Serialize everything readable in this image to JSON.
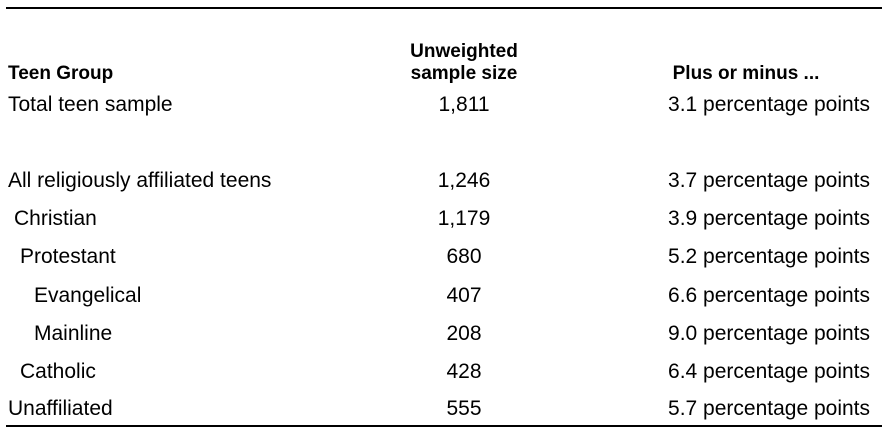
{
  "table": {
    "headers": {
      "group": "Teen Group",
      "sample_line1": "Unweighted",
      "sample_line2": "sample size",
      "moe": "Plus or minus ..."
    },
    "rows": [
      {
        "group": "Total teen sample",
        "sample": "1,811",
        "moe": "3.1 percentage points",
        "indent": 0
      },
      {
        "group": "All religiously affiliated teens",
        "sample": "1,246",
        "moe": "3.7 percentage points",
        "indent": 0
      },
      {
        "group": "Christian",
        "sample": "1,179",
        "moe": "3.9 percentage points",
        "indent": 1
      },
      {
        "group": "Protestant",
        "sample": "680",
        "moe": "5.2 percentage points",
        "indent": 2
      },
      {
        "group": "Evangelical",
        "sample": "407",
        "moe": "6.6 percentage points",
        "indent": 3
      },
      {
        "group": "Mainline",
        "sample": "208",
        "moe": "9.0 percentage points",
        "indent": 3
      },
      {
        "group": "Catholic",
        "sample": "428",
        "moe": "6.4 percentage points",
        "indent": 2
      },
      {
        "group": "Unaffiliated",
        "sample": "555",
        "moe": "5.7 percentage points",
        "indent": 0
      }
    ]
  }
}
